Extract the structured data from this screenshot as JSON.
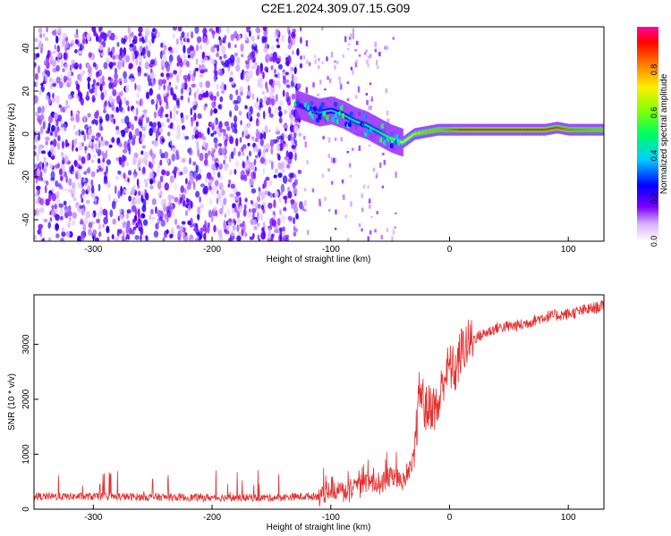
{
  "title": "C2E1.2024.309.07.15.G09",
  "chart_data": [
    {
      "type": "heatmap",
      "xlabel": "Height of straight line (km)",
      "ylabel": "Frequency (Hz)",
      "xlim": [
        -350,
        130
      ],
      "ylim": [
        -50,
        50
      ],
      "xticks": [
        "-300",
        "-200",
        "-100",
        "0",
        "100"
      ],
      "yticks": [
        "-40",
        "-20",
        "0",
        "20",
        "40"
      ],
      "colorbar": {
        "label": "Normalized spectral amplitude",
        "range": [
          0,
          1
        ],
        "ticks": [
          "0.0",
          "0.2",
          "0.4",
          "0.6",
          "0.8"
        ]
      },
      "signal_track": {
        "x": [
          -130,
          -120,
          -110,
          -100,
          -90,
          -80,
          -70,
          -60,
          -50,
          -40,
          -30,
          -20,
          -10,
          0,
          10,
          20,
          40,
          60,
          80,
          90,
          100,
          130
        ],
        "freq": [
          14,
          12,
          10,
          11,
          9,
          6,
          4,
          1,
          -2,
          -4,
          0,
          1,
          2,
          2,
          2,
          2,
          2,
          2,
          2,
          3,
          2,
          2
        ],
        "amplitude": [
          0.25,
          0.3,
          0.35,
          0.4,
          0.45,
          0.5,
          0.5,
          0.5,
          0.6,
          0.7,
          0.75,
          0.8,
          0.8,
          0.85,
          0.9,
          0.9,
          0.9,
          0.9,
          0.9,
          0.9,
          0.85,
          0.8
        ]
      },
      "noise_region": {
        "x_from": -350,
        "x_to": -125,
        "level": 0.2
      }
    },
    {
      "type": "line",
      "xlabel": "Height of straight line (km)",
      "ylabel": "SNR (10 * v/v)",
      "xlim": [
        -350,
        130
      ],
      "ylim": [
        0,
        3900
      ],
      "xticks": [
        "-300",
        "-200",
        "-100",
        "0",
        "100"
      ],
      "yticks": [
        "0",
        "1000",
        "2000",
        "3000"
      ],
      "color": "#e53030",
      "series": [
        {
          "x": [
            -350,
            -300,
            -250,
            -200,
            -150,
            -110,
            -100,
            -90,
            -80,
            -70,
            -60,
            -50,
            -40,
            -30,
            -25,
            -20,
            -15,
            -10,
            -5,
            0,
            5,
            10,
            20,
            30,
            40,
            60,
            80,
            100,
            130
          ],
          "values": [
            230,
            230,
            220,
            210,
            210,
            240,
            400,
            300,
            350,
            500,
            450,
            600,
            500,
            900,
            2200,
            1800,
            1900,
            1800,
            2400,
            2600,
            2500,
            2900,
            3100,
            3200,
            3300,
            3350,
            3500,
            3550,
            3700
          ]
        }
      ]
    }
  ]
}
